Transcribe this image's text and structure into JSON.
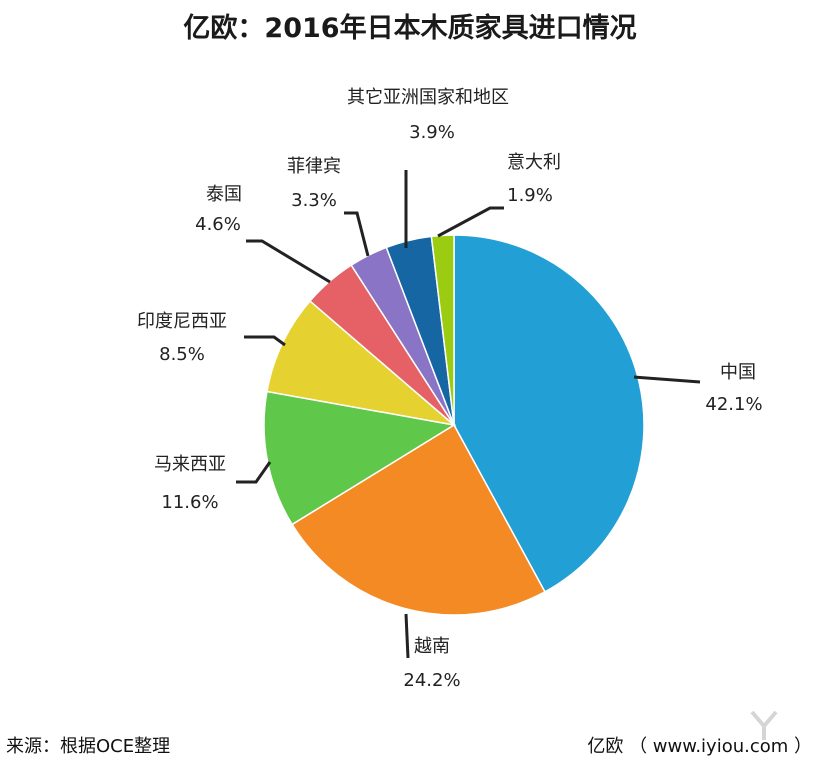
{
  "title": "亿欧：2016年日本木质家具进口情况",
  "footer": {
    "source": "来源：根据OCE整理",
    "brand": "亿欧 （ www.iyiou.com ）"
  },
  "chart_data": {
    "type": "pie",
    "title": "亿欧：2016年日本木质家具进口情况",
    "unit": "%",
    "labels_outside": true,
    "slices": [
      {
        "name": "中国",
        "value": 42.1,
        "label": "42.1%",
        "color": "#229fd5"
      },
      {
        "name": "越南",
        "value": 24.2,
        "label": "24.2%",
        "color": "#f48a24"
      },
      {
        "name": "马来西亚",
        "value": 11.6,
        "label": "11.6%",
        "color": "#5fc84a"
      },
      {
        "name": "印度尼西亚",
        "value": 8.5,
        "label": "8.5%",
        "color": "#e5d12f"
      },
      {
        "name": "泰国",
        "value": 4.6,
        "label": "4.6%",
        "color": "#e56166"
      },
      {
        "name": "菲律宾",
        "value": 3.3,
        "label": "3.3%",
        "color": "#8a74c6"
      },
      {
        "name": "其它亚洲国家和地区",
        "value": 3.9,
        "label": "3.9%",
        "color": "#1566a3"
      },
      {
        "name": "意大利",
        "value": 1.9,
        "label": "1.9%",
        "color": "#9ccc12"
      }
    ]
  }
}
